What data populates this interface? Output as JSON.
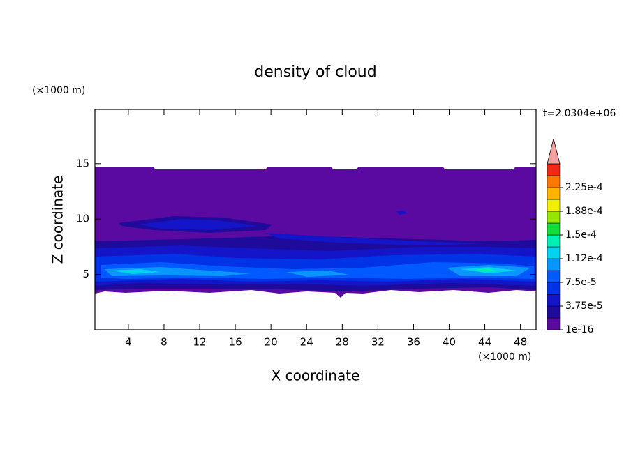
{
  "chart_data": {
    "type": "contour",
    "title": "density of cloud",
    "x_label": "X coordinate",
    "y_label": "Z coordinate",
    "x_unit": "(×1000 m)",
    "y_unit": "(×1000 m)",
    "time_label": "t=2.0304e+06",
    "xlim": [
      0.25,
      49.75
    ],
    "ylim": [
      0,
      19.9
    ],
    "xticks": [
      4,
      8,
      12,
      16,
      20,
      24,
      28,
      32,
      36,
      40,
      44,
      48
    ],
    "yticks": [
      5,
      10,
      15
    ],
    "colorbar": {
      "ticks": [
        1e-16,
        {
          "value": 3.75e-05,
          "label": "3.75e-5"
        },
        {
          "value": 7.5e-05,
          "label": "7.5e-5"
        },
        {
          "value": 0.0001125,
          "label": "1.12e-4"
        },
        {
          "value": 0.00015,
          "label": "1.5e-4"
        },
        {
          "value": 0.0001875,
          "label": "1.88e-4"
        },
        {
          "value": 0.000225,
          "label": "2.25e-4"
        }
      ],
      "colors": [
        "#5a0aa0",
        "#1e0a9b",
        "#1414c8",
        "#0032e6",
        "#005aff",
        "#0a96ff",
        "#00d2f0",
        "#00f0b4",
        "#14dc3c",
        "#96e600",
        "#f0f000",
        "#ffb400",
        "#ff7800",
        "#f02814"
      ],
      "extend_color": "#f4a0a0"
    }
  }
}
